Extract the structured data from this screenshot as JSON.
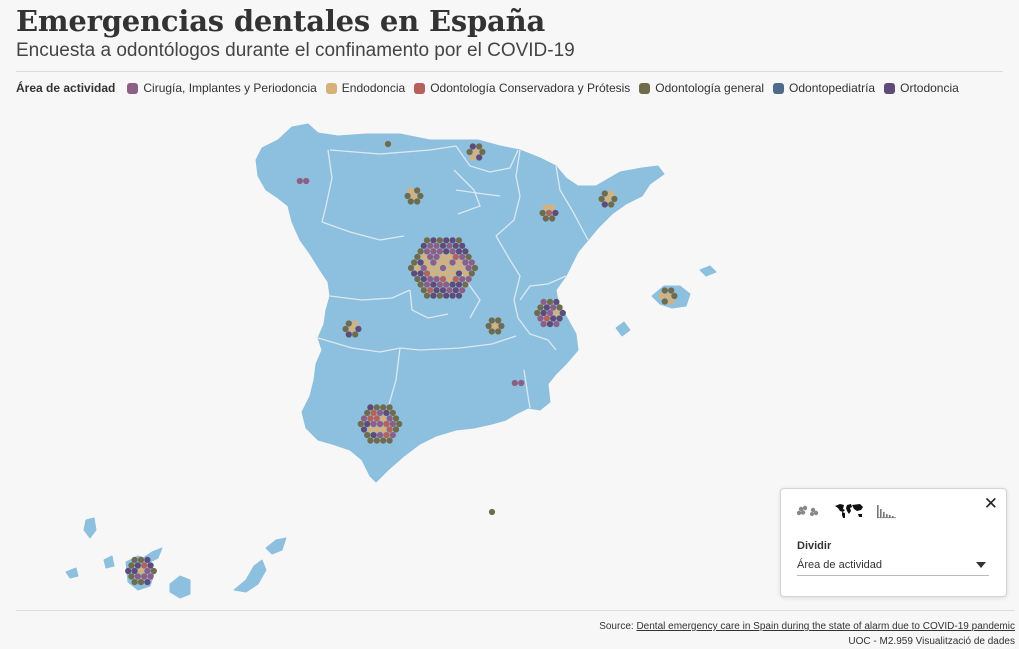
{
  "header": {
    "title": "Emergencias dentales en España",
    "subtitle": "Encuesta a odontólogos durante el confinamento por el COVID-19"
  },
  "legend": {
    "title": "Área de actividad",
    "items": [
      {
        "label": "Cirugía, Implantes y Periodoncia",
        "color": "#8e5f86"
      },
      {
        "label": "Endodoncia",
        "color": "#d6b27a"
      },
      {
        "label": "Odontología Conservadora y Prótesis",
        "color": "#b5625a"
      },
      {
        "label": "Odontología general",
        "color": "#6f6b4c"
      },
      {
        "label": "Odontopediatría",
        "color": "#4f6a8d"
      },
      {
        "label": "Ortodoncia",
        "color": "#5e4b78"
      }
    ]
  },
  "map": {
    "land_color": "#8dbfde",
    "border_color": "#dbe9f3"
  },
  "panel": {
    "close_glyph": "✕",
    "view_icons": [
      "bubbles-icon",
      "world-map-icon",
      "histogram-icon"
    ],
    "divide_label": "Dividir",
    "select_value": "Área de actividad"
  },
  "footer": {
    "source_prefix": "Source: ",
    "source_link": "Dental emergency care in Spain during the state of alarm due to COVID-19 pandemic",
    "credit": "UOC - M2.959 Visualització de dades"
  }
}
